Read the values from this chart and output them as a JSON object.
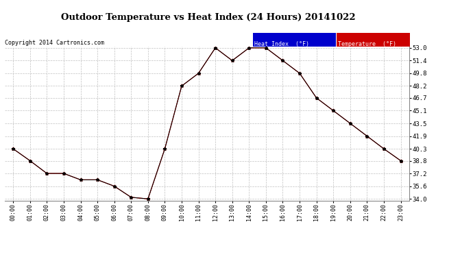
{
  "title": "Outdoor Temperature vs Heat Index (24 Hours) 20141022",
  "copyright_text": "Copyright 2014 Cartronics.com",
  "background_color": "#ffffff",
  "grid_color": "#c0c0c0",
  "hours": [
    "00:00",
    "01:00",
    "02:00",
    "03:00",
    "04:00",
    "05:00",
    "06:00",
    "07:00",
    "08:00",
    "09:00",
    "10:00",
    "11:00",
    "12:00",
    "13:00",
    "14:00",
    "15:00",
    "16:00",
    "17:00",
    "18:00",
    "19:00",
    "20:00",
    "21:00",
    "22:00",
    "23:00"
  ],
  "temperature": [
    40.3,
    38.8,
    37.2,
    37.2,
    36.4,
    36.4,
    35.6,
    34.2,
    34.0,
    40.3,
    48.2,
    49.8,
    53.0,
    51.4,
    53.0,
    53.0,
    51.4,
    49.8,
    46.7,
    45.1,
    43.5,
    41.9,
    40.3,
    38.8
  ],
  "heat_index": [
    40.3,
    38.8,
    37.2,
    37.2,
    36.4,
    36.4,
    35.6,
    34.2,
    34.0,
    40.3,
    48.2,
    49.8,
    53.0,
    51.4,
    53.0,
    53.0,
    51.4,
    49.8,
    46.7,
    45.1,
    43.5,
    41.9,
    40.3,
    38.8
  ],
  "temp_color": "#ff0000",
  "heat_color": "#000000",
  "ylim_min": 34.0,
  "ylim_max": 53.0,
  "yticks": [
    34.0,
    35.6,
    37.2,
    38.8,
    40.3,
    41.9,
    43.5,
    45.1,
    46.7,
    48.2,
    49.8,
    51.4,
    53.0
  ],
  "legend_heat_bg": "#0000cc",
  "legend_temp_bg": "#cc0000",
  "legend_heat_label": "Heat Index  (°F)",
  "legend_temp_label": "Temperature  (°F)"
}
